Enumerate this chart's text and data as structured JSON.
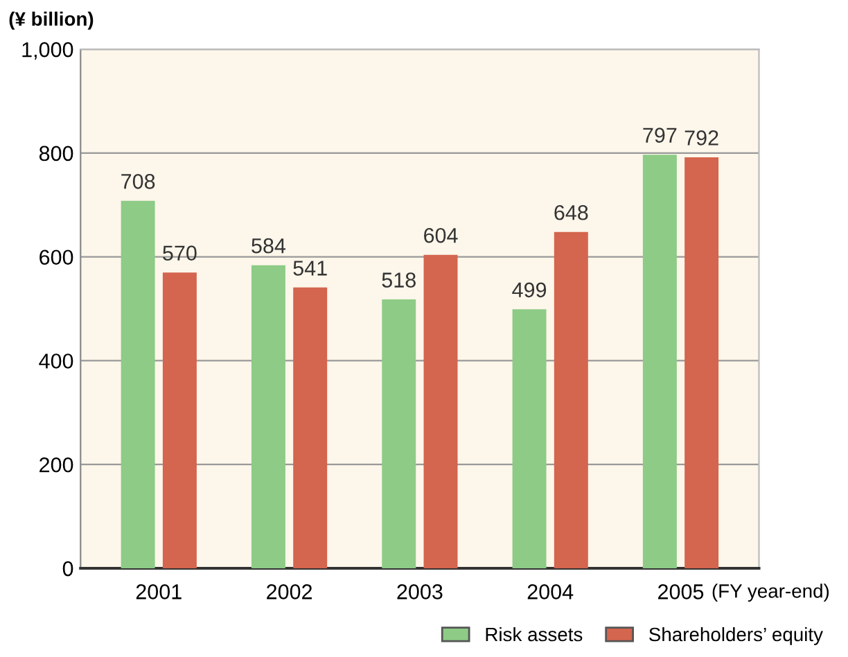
{
  "chart_data": {
    "type": "bar",
    "ylabel": "(¥ billion)",
    "categories": [
      "2001",
      "2002",
      "2003",
      "2004",
      "2005"
    ],
    "series": [
      {
        "name": "Risk assets",
        "color": "#8dcb86",
        "values": [
          708,
          584,
          518,
          499,
          797
        ]
      },
      {
        "name": "Shareholders’ equity",
        "color": "#d4654e",
        "values": [
          570,
          541,
          604,
          648,
          792
        ]
      }
    ],
    "ylim": [
      0,
      1000
    ],
    "yticks": [
      0,
      200,
      400,
      600,
      {
        "value": 1000,
        "label": "1,000"
      },
      800
    ],
    "grid": "y",
    "legend": "bottom right",
    "data_labels": true,
    "annotations": [
      "(FY year-end)"
    ]
  }
}
